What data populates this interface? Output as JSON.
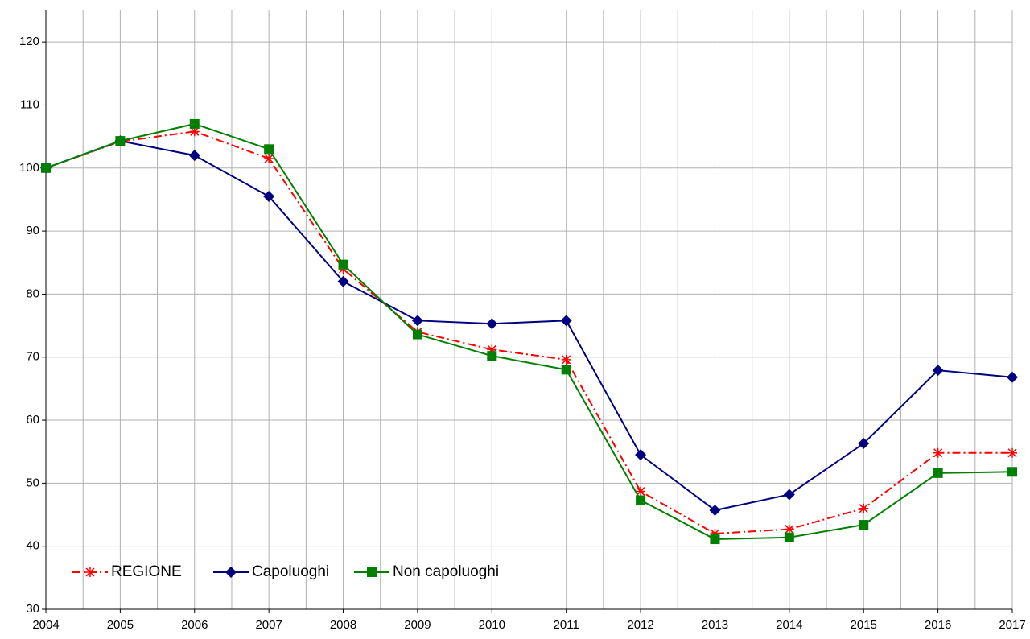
{
  "chart_data": {
    "type": "line",
    "x": [
      2004,
      2005,
      2006,
      2007,
      2008,
      2009,
      2010,
      2011,
      2012,
      2013,
      2014,
      2015,
      2016,
      2017
    ],
    "series": [
      {
        "name": "REGIONE",
        "color": "#ff0000",
        "marker": "star",
        "linestyle": "dashdot",
        "values": [
          100,
          104.2,
          105.8,
          101.5,
          84,
          74,
          71.2,
          69.6,
          48.7,
          42,
          42.7,
          46,
          54.8,
          54.8
        ]
      },
      {
        "name": "Capoluoghi",
        "color": "#000080",
        "marker": "diamond",
        "linestyle": "solid",
        "values": [
          100,
          104.3,
          102,
          95.5,
          82,
          75.8,
          75.3,
          75.8,
          54.5,
          45.7,
          48.2,
          56.3,
          67.9,
          66.8
        ]
      },
      {
        "name": "Non capoluoghi",
        "color": "#008000",
        "marker": "square",
        "linestyle": "solid",
        "values": [
          100,
          104.3,
          107,
          103,
          84.7,
          73.6,
          70.2,
          68,
          47.3,
          41.1,
          41.4,
          43.4,
          51.6,
          51.8
        ]
      }
    ],
    "xlim": [
      2004,
      2017
    ],
    "xticks": [
      2004,
      2005,
      2006,
      2007,
      2008,
      2009,
      2010,
      2011,
      2012,
      2013,
      2014,
      2015,
      2016,
      2017
    ],
    "ylim": [
      30,
      125
    ],
    "yticks": [
      30,
      40,
      50,
      60,
      70,
      80,
      90,
      100,
      110,
      120
    ],
    "grid": true,
    "minor_x_grid": true,
    "legend": "lower left"
  }
}
